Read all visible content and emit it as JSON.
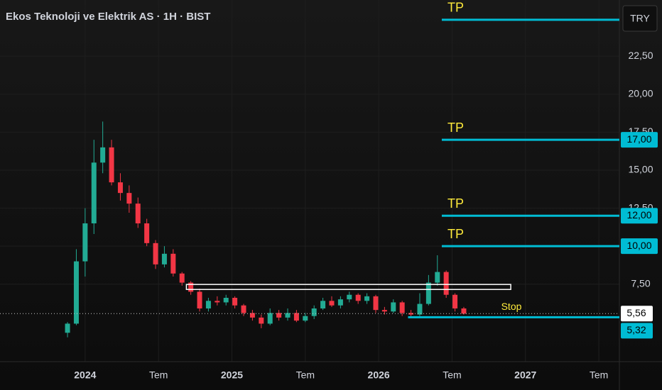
{
  "chart_data": {
    "type": "candlestick",
    "title": "Ekos Teknoloji ve Elektrik AS · 1H · BIST",
    "currency": "TRY",
    "up_color": "#22ab94",
    "down_color": "#f23645",
    "x": [
      2023.88,
      2023.94,
      2024.0,
      2024.06,
      2024.12,
      2024.18,
      2024.24,
      2024.3,
      2024.36,
      2024.42,
      2024.48,
      2024.54,
      2024.6,
      2024.66,
      2024.72,
      2024.78,
      2024.84,
      2024.9,
      2024.96,
      2025.02,
      2025.08,
      2025.14,
      2025.2,
      2025.26,
      2025.32,
      2025.38,
      2025.44,
      2025.5,
      2025.56,
      2025.62,
      2025.68,
      2025.74,
      2025.8,
      2025.86,
      2025.92,
      2025.98,
      2026.04,
      2026.1,
      2026.16,
      2026.22,
      2026.28,
      2026.34,
      2026.4,
      2026.46,
      2026.52,
      2026.58
    ],
    "open": [
      4.3,
      4.9,
      9.0,
      11.5,
      15.5,
      16.5,
      14.2,
      13.5,
      12.8,
      11.5,
      10.2,
      8.8,
      9.5,
      8.2,
      7.6,
      7.0,
      5.9,
      6.4,
      6.3,
      6.6,
      6.1,
      5.6,
      5.3,
      4.9,
      5.6,
      5.3,
      5.6,
      5.1,
      5.4,
      5.9,
      6.4,
      6.1,
      6.5,
      6.8,
      6.4,
      6.7,
      5.8,
      5.7,
      6.3,
      5.6,
      5.5,
      6.2,
      7.6,
      8.3,
      6.8,
      5.9
    ],
    "high": [
      5.0,
      9.8,
      12.5,
      17.0,
      18.2,
      17.0,
      14.8,
      14.0,
      13.2,
      11.8,
      10.4,
      10.0,
      9.8,
      8.3,
      7.7,
      7.2,
      6.6,
      6.7,
      6.8,
      6.7,
      6.2,
      5.8,
      5.5,
      5.9,
      5.8,
      5.9,
      5.8,
      5.6,
      6.1,
      6.6,
      6.7,
      6.7,
      7.0,
      6.9,
      6.9,
      6.8,
      6.0,
      6.5,
      6.4,
      5.8,
      6.9,
      8.1,
      9.4,
      8.4,
      6.9,
      6.0
    ],
    "low": [
      4.0,
      4.8,
      8.0,
      10.8,
      14.8,
      14.0,
      13.0,
      12.2,
      11.2,
      10.0,
      8.5,
      8.6,
      8.0,
      7.4,
      6.8,
      5.7,
      5.7,
      6.1,
      6.1,
      5.9,
      5.4,
      5.1,
      4.6,
      4.8,
      5.1,
      5.1,
      5.0,
      5.0,
      5.2,
      5.8,
      6.0,
      5.9,
      6.3,
      6.2,
      6.2,
      5.6,
      5.5,
      5.6,
      5.4,
      5.3,
      5.4,
      6.1,
      7.4,
      6.6,
      5.7,
      5.5
    ],
    "close": [
      4.9,
      9.0,
      11.5,
      15.5,
      16.5,
      14.2,
      13.5,
      12.8,
      11.5,
      10.2,
      8.8,
      9.5,
      8.2,
      7.6,
      7.0,
      5.9,
      6.4,
      6.3,
      6.6,
      6.1,
      5.6,
      5.3,
      4.9,
      5.6,
      5.3,
      5.6,
      5.1,
      5.4,
      5.9,
      6.4,
      6.1,
      6.5,
      6.8,
      6.4,
      6.7,
      5.8,
      5.7,
      6.3,
      5.6,
      5.5,
      6.2,
      7.6,
      8.3,
      6.8,
      5.9,
      5.56
    ],
    "xlim": [
      2023.42,
      2027.64
    ],
    "ylim": [
      2.4,
      26.2
    ],
    "xticks": [
      2024,
      {
        "value": 2024.5,
        "label": "Tem"
      },
      2025,
      {
        "value": 2025.5,
        "label": "Tem"
      },
      2026,
      {
        "value": 2026.5,
        "label": "Tem"
      },
      2027,
      {
        "value": 2027.5,
        "label": "Tem"
      }
    ],
    "yticks": [
      {
        "value": 7.5,
        "label": "7,50"
      },
      {
        "value": 10,
        "label": "10,00"
      },
      {
        "value": 12.5,
        "label": "12,50"
      },
      {
        "value": 15,
        "label": "15,00"
      },
      {
        "value": 17.5,
        "label": "17,50"
      },
      {
        "value": 20,
        "label": "20,00"
      },
      {
        "value": 22.5,
        "label": "22,50"
      }
    ],
    "grid": true,
    "targets": [
      {
        "label": "TP",
        "value": 24.9,
        "start": 2026.43
      },
      {
        "label": "TP",
        "value": 17,
        "value_label": "17,00",
        "start": 2026.43
      },
      {
        "label": "TP",
        "value": 12,
        "value_label": "12,00",
        "start": 2026.43
      },
      {
        "label": "TP",
        "value": 10,
        "value_label": "10,00",
        "start": 2026.43
      }
    ],
    "stop": {
      "label": "Stop",
      "value": 5.32,
      "value_label": "5,32",
      "start": 2026.2
    },
    "last_price": 5.56,
    "last_price_label": "5,56",
    "zone": {
      "x": [
        2024.69,
        2026.9
      ],
      "y": [
        7.15,
        7.48
      ]
    }
  }
}
